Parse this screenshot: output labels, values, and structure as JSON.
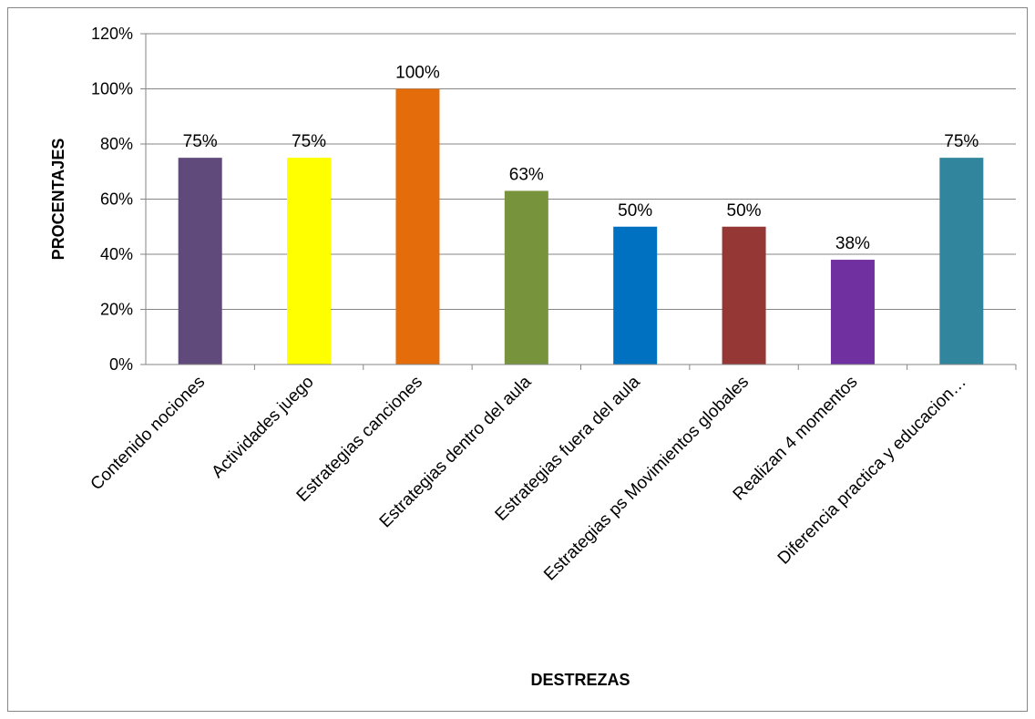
{
  "chart_data": {
    "type": "bar",
    "title": "",
    "xlabel": "DESTREZAS",
    "ylabel": "PROCENTAJES",
    "ylim": [
      0,
      120
    ],
    "y_ticks": [
      0,
      20,
      40,
      60,
      80,
      100,
      120
    ],
    "y_tick_labels": [
      "0%",
      "20%",
      "40%",
      "60%",
      "80%",
      "100%",
      "120%"
    ],
    "grid": true,
    "legend": "none",
    "categories": [
      "Contenido nociones",
      "Actividades juego",
      "Estrategias canciones",
      "Estrategias dentro del aula",
      "Estrategias fuera del aula",
      "Estrategias ps Movimientos globales",
      "Realizan 4 momentos",
      "Diferencia practica y educacion…"
    ],
    "values": [
      75,
      75,
      100,
      63,
      50,
      50,
      38,
      75
    ],
    "data_labels": [
      "75%",
      "75%",
      "100%",
      "63%",
      "50%",
      "50%",
      "38%",
      "75%"
    ],
    "colors": [
      "#604A7B",
      "#FFFF00",
      "#E46C0A",
      "#77933C",
      "#0070C0",
      "#953735",
      "#7030A0",
      "#31859C"
    ]
  }
}
